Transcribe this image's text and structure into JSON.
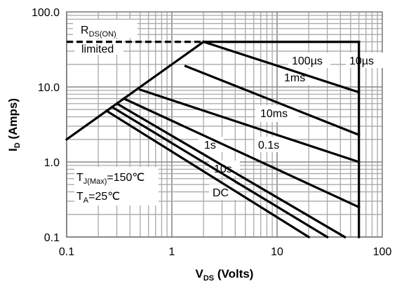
{
  "chart_data": {
    "type": "line",
    "title": "",
    "x_scale": "log",
    "y_scale": "log",
    "xlim": [
      0.1,
      100
    ],
    "ylim": [
      0.1,
      100
    ],
    "grid": true,
    "xlabel": {
      "main": "V",
      "sub": "DS",
      "rest": " (Volts)"
    },
    "ylabel": {
      "main": "I",
      "sub": "D",
      "rest": " (Amps)"
    },
    "xticks": [
      {
        "value": 0.1,
        "label": "0.1"
      },
      {
        "value": 1,
        "label": "1"
      },
      {
        "value": 10,
        "label": "10"
      },
      {
        "value": 100,
        "label": "100"
      }
    ],
    "yticks": [
      {
        "value": 0.1,
        "label": "0.1"
      },
      {
        "value": 1,
        "label": "1.0"
      },
      {
        "value": 10,
        "label": "10.0"
      },
      {
        "value": 100,
        "label": "100.0"
      }
    ],
    "rds_on_limit": {
      "label_main": "R",
      "label_sub": "DS(ON)",
      "label_line2": "limited",
      "points": [
        [
          0.1,
          2.0
        ],
        [
          2.0,
          40
        ]
      ]
    },
    "current_limit": {
      "value": 40,
      "x_range": [
        0.1,
        60
      ]
    },
    "voltage_limit": {
      "value": 60
    },
    "curves": [
      {
        "name": "10µs",
        "points": [
          [
            3.3,
            40
          ],
          [
            60,
            40
          ]
        ]
      },
      {
        "name": "100µs",
        "points": [
          [
            2.0,
            40
          ],
          [
            60,
            8.5
          ]
        ]
      },
      {
        "name": "1ms",
        "points": [
          [
            1.35,
            19
          ],
          [
            60,
            2.3
          ]
        ]
      },
      {
        "name": "10ms",
        "points": [
          [
            0.5,
            9.2
          ],
          [
            60,
            1.0
          ]
        ]
      },
      {
        "name": "0.1s",
        "points": [
          [
            0.35,
            7.0
          ],
          [
            60,
            0.25
          ]
        ]
      },
      {
        "name": "1s",
        "points": [
          [
            0.3,
            6.0
          ],
          [
            44,
            0.1
          ]
        ]
      },
      {
        "name": "10s",
        "points": [
          [
            0.27,
            5.4
          ],
          [
            30,
            0.1
          ]
        ]
      },
      {
        "name": "DC",
        "points": [
          [
            0.24,
            4.8
          ],
          [
            20,
            0.1
          ]
        ]
      }
    ],
    "conditions": [
      {
        "main": "T",
        "sub": "J(Max)",
        "rest": "=150℃"
      },
      {
        "main": "T",
        "sub": "A",
        "rest": "=25℃"
      }
    ]
  }
}
